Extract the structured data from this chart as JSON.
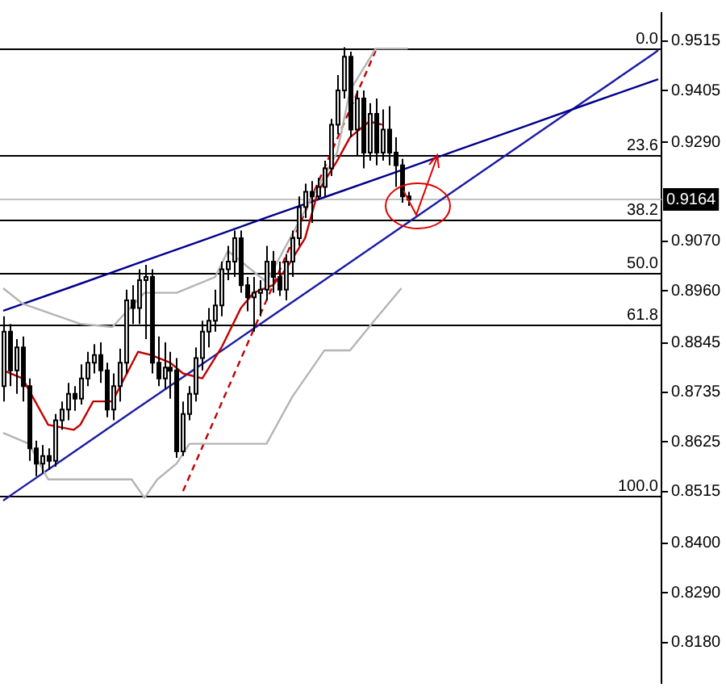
{
  "chart_data": {
    "type": "candlestick",
    "categories": [
      null,
      null,
      null,
      null,
      null,
      null,
      null,
      null,
      null,
      null,
      null,
      null,
      null,
      null,
      null,
      null,
      null,
      null,
      null,
      null,
      null,
      null,
      null,
      null,
      null,
      null,
      null,
      null,
      null,
      null,
      null,
      null,
      null,
      null,
      null,
      null,
      null,
      null,
      null,
      null,
      null,
      null,
      null,
      null,
      null,
      null,
      null,
      null,
      null,
      null,
      null,
      null,
      null,
      null,
      null,
      null,
      null,
      null,
      null,
      null,
      null,
      null,
      null,
      null,
      null,
      null,
      null,
      null,
      null,
      null,
      null,
      null,
      null,
      null,
      null,
      null,
      null,
      null,
      null,
      null,
      null,
      null,
      null,
      null,
      null,
      null,
      null,
      null,
      null,
      null,
      null,
      null,
      null,
      null,
      null,
      null,
      null,
      null,
      null,
      null,
      null,
      null,
      null
    ],
    "ohlc": [
      [
        0.8749,
        0.8904,
        0.8715,
        0.887
      ],
      [
        0.887,
        0.8887,
        0.8749,
        0.8784
      ],
      [
        0.8784,
        0.8853,
        0.8732,
        0.8835
      ],
      [
        0.8835,
        0.8859,
        0.8715,
        0.8749
      ],
      [
        0.8749,
        0.8766,
        0.8583,
        0.8611
      ],
      [
        0.8611,
        0.8628,
        0.8549,
        0.8577
      ],
      [
        0.8577,
        0.8618,
        0.8556,
        0.8594
      ],
      [
        0.8594,
        0.8611,
        0.8563,
        0.8583
      ],
      [
        0.8583,
        0.8687,
        0.857,
        0.8673
      ],
      [
        0.8673,
        0.8715,
        0.8652,
        0.8697
      ],
      [
        0.8697,
        0.8756,
        0.8673,
        0.8732
      ],
      [
        0.8732,
        0.8749,
        0.8694,
        0.8721
      ],
      [
        0.8721,
        0.8797,
        0.8708,
        0.8766
      ],
      [
        0.8766,
        0.8825,
        0.8749,
        0.8801
      ],
      [
        0.8801,
        0.8842,
        0.8777,
        0.8818
      ],
      [
        0.8818,
        0.8846,
        0.8756,
        0.8784
      ],
      [
        0.8784,
        0.8801,
        0.868,
        0.8697
      ],
      [
        0.8697,
        0.8777,
        0.8673,
        0.8749
      ],
      [
        0.8749,
        0.8832,
        0.8715,
        0.8801
      ],
      [
        0.8801,
        0.8963,
        0.8777,
        0.8939
      ],
      [
        0.8939,
        0.8973,
        0.8887,
        0.8922
      ],
      [
        0.8922,
        0.9008,
        0.8887,
        0.8984
      ],
      [
        0.8984,
        0.9018,
        0.8853,
        0.8991
      ],
      [
        0.8991,
        0.9008,
        0.8777,
        0.8801
      ],
      [
        0.8801,
        0.8859,
        0.8749,
        0.8766
      ],
      [
        0.8766,
        0.8846,
        0.8742,
        0.879
      ],
      [
        0.879,
        0.8825,
        0.8721,
        0.8784
      ],
      [
        0.8784,
        0.8811,
        0.859,
        0.8604
      ],
      [
        0.8604,
        0.8715,
        0.8594,
        0.8687
      ],
      [
        0.8687,
        0.8749,
        0.8673,
        0.8732
      ],
      [
        0.8732,
        0.8835,
        0.8715,
        0.8811
      ],
      [
        0.8811,
        0.8894,
        0.8784,
        0.887
      ],
      [
        0.887,
        0.8922,
        0.8835,
        0.8894
      ],
      [
        0.8894,
        0.8963,
        0.887,
        0.8928
      ],
      [
        0.8928,
        0.9025,
        0.8904,
        0.9008
      ],
      [
        0.9008,
        0.906,
        0.8984,
        0.9025
      ],
      [
        0.9025,
        0.9094,
        0.8991,
        0.9077
      ],
      [
        0.9077,
        0.9094,
        0.8956,
        0.8973
      ],
      [
        0.8973,
        0.8991,
        0.8915,
        0.8946
      ],
      [
        0.8946,
        0.8991,
        0.887,
        0.8956
      ],
      [
        0.8956,
        0.8984,
        0.8904,
        0.8963
      ],
      [
        0.8963,
        0.906,
        0.8939,
        0.9025
      ],
      [
        0.9025,
        0.9049,
        0.8956,
        0.8991
      ],
      [
        0.8991,
        0.9025,
        0.8949,
        0.8963
      ],
      [
        0.8963,
        0.9042,
        0.8939,
        0.9025
      ],
      [
        0.9025,
        0.9094,
        0.8991,
        0.9077
      ],
      [
        0.9077,
        0.917,
        0.906,
        0.9146
      ],
      [
        0.9146,
        0.9198,
        0.9122,
        0.918
      ],
      [
        0.918,
        0.9204,
        0.9111,
        0.917
      ],
      [
        0.917,
        0.9211,
        0.9163,
        0.9191
      ],
      [
        0.9191,
        0.9249,
        0.917,
        0.9232
      ],
      [
        0.9232,
        0.9342,
        0.9215,
        0.9329
      ],
      [
        0.9329,
        0.9439,
        0.9308,
        0.9405
      ],
      [
        0.9405,
        0.9501,
        0.9387,
        0.948
      ],
      [
        0.948,
        0.9491,
        0.9301,
        0.9318
      ],
      [
        0.9318,
        0.9405,
        0.926,
        0.9387
      ],
      [
        0.9387,
        0.9405,
        0.9232,
        0.9267
      ],
      [
        0.9267,
        0.9377,
        0.9249,
        0.9353
      ],
      [
        0.9353,
        0.9387,
        0.9239,
        0.9267
      ],
      [
        0.9267,
        0.9363,
        0.9249,
        0.9318
      ],
      [
        0.9318,
        0.937,
        0.9239,
        0.9267
      ],
      [
        0.9267,
        0.9301,
        0.9191,
        0.9239
      ],
      [
        0.9239,
        0.9253,
        0.9156,
        0.917
      ],
      [
        0.917,
        0.918,
        0.9149,
        0.9163
      ],
      null,
      null,
      null,
      null,
      null,
      null,
      null,
      null,
      null,
      null,
      null,
      null,
      null,
      null,
      null,
      null,
      null,
      null,
      null,
      null,
      null,
      null,
      null,
      null,
      null,
      null,
      null,
      null,
      null,
      null,
      null,
      null,
      null,
      null,
      null,
      null,
      null,
      null,
      null
    ],
    "series": [
      {
        "type": "line",
        "color": "#b4b4b4",
        "values": [
          0.8966,
          null,
          null,
          0.8932,
          null,
          null,
          null,
          null,
          null,
          null,
          null,
          null,
          0.8887,
          null,
          null,
          null,
          null,
          0.888,
          null,
          0.8911,
          null,
          null,
          0.8956,
          null,
          null,
          null,
          null,
          0.8956,
          null,
          null,
          null,
          null,
          null,
          0.8991,
          null,
          0.9049,
          null,
          null,
          null,
          null,
          null,
          0.898,
          null,
          null,
          null,
          null,
          null,
          0.9139,
          null,
          null,
          null,
          null,
          0.9267,
          null,
          0.9405,
          null,
          null,
          null,
          0.9498,
          null,
          null,
          null,
          null,
          0.9498,
          null,
          null,
          null,
          null,
          null,
          null,
          null,
          null,
          null,
          null,
          null,
          null,
          null,
          null,
          null,
          null,
          null,
          null,
          null,
          null,
          null,
          null,
          null,
          null,
          null,
          null,
          null,
          null,
          null,
          null,
          null,
          null,
          null,
          null,
          null,
          null,
          null,
          null,
          null
        ]
      },
      {
        "type": "line",
        "color": "#b4b4b4",
        "values": [
          0.8645,
          null,
          null,
          null,
          0.8621,
          null,
          null,
          0.8542,
          null,
          null,
          null,
          null,
          null,
          null,
          null,
          null,
          null,
          null,
          null,
          null,
          0.8542,
          null,
          0.8501,
          null,
          0.8542,
          null,
          null,
          0.8577,
          null,
          0.8621,
          null,
          null,
          null,
          null,
          null,
          null,
          null,
          null,
          null,
          null,
          null,
          0.8621,
          null,
          null,
          null,
          0.8725,
          null,
          null,
          null,
          null,
          0.8828,
          null,
          null,
          null,
          0.8828,
          null,
          null,
          null,
          0.8898,
          null,
          null,
          null,
          0.8966,
          null,
          null,
          null,
          null,
          null,
          null,
          null,
          null,
          null,
          null,
          null,
          null,
          null,
          null,
          null,
          null,
          null,
          null,
          null,
          null,
          null,
          null,
          null,
          null,
          null,
          null,
          null,
          null,
          null,
          null,
          null,
          null,
          null,
          null,
          null,
          null,
          null,
          null,
          null,
          null
        ]
      },
      {
        "type": "line",
        "color": "#c00000",
        "values": [
          0.8784,
          null,
          null,
          0.8766,
          null,
          null,
          null,
          0.8663,
          null,
          null,
          null,
          0.8652,
          0.8663,
          null,
          0.8715,
          null,
          null,
          0.8715,
          null,
          null,
          null,
          0.8825,
          null,
          0.8818,
          null,
          null,
          0.8801,
          null,
          0.8777,
          null,
          null,
          0.8766,
          null,
          null,
          0.8835,
          null,
          null,
          0.8922,
          null,
          0.8956,
          null,
          null,
          0.8973,
          null,
          0.9008,
          null,
          null,
          0.9077,
          null,
          0.918,
          null,
          null,
          0.9249,
          null,
          0.9301,
          null,
          null,
          0.9336,
          null,
          0.9329,
          null,
          null,
          null,
          null,
          null,
          null,
          null,
          null,
          null,
          null,
          null,
          null,
          null,
          null,
          null,
          null,
          null,
          null,
          null,
          null,
          null,
          null,
          null,
          null,
          null,
          null,
          null,
          null,
          null,
          null,
          null,
          null,
          null,
          null,
          null,
          null,
          null,
          null,
          null,
          null,
          null,
          null,
          null
        ]
      },
      {
        "type": "line",
        "color": "#c00000",
        "line_style": "dashed",
        "values": [
          null,
          null,
          null,
          null,
          null,
          null,
          null,
          null,
          null,
          null,
          null,
          null,
          null,
          null,
          null,
          null,
          null,
          null,
          null,
          null,
          null,
          null,
          null,
          null,
          null,
          null,
          null,
          null,
          0.8516,
          null,
          null,
          null,
          null,
          null,
          null,
          null,
          null,
          null,
          null,
          null,
          null,
          null,
          null,
          null,
          null,
          null,
          null,
          null,
          null,
          null,
          null,
          null,
          null,
          null,
          null,
          null,
          null,
          null,
          0.9493,
          null,
          null,
          null,
          null,
          null,
          null,
          null,
          null,
          null,
          null,
          null,
          null,
          null,
          null,
          null,
          null,
          null,
          null,
          null,
          null,
          null,
          null,
          null,
          null,
          null,
          null,
          null,
          null,
          null,
          null,
          null,
          null,
          null,
          null,
          null,
          null,
          null,
          null,
          null,
          null,
          null,
          null,
          null,
          null
        ]
      },
      {
        "type": "line",
        "color": "#00008b",
        "values": [
          0.8916,
          0.8921,
          null,
          null,
          null,
          null,
          null,
          null,
          null,
          null,
          null,
          0.8971,
          null,
          null,
          null,
          null,
          null,
          null,
          null,
          null,
          null,
          0.9022,
          null,
          null,
          null,
          null,
          null,
          null,
          null,
          null,
          null,
          0.9072,
          null,
          null,
          null,
          null,
          null,
          null,
          null,
          null,
          null,
          0.9123,
          null,
          null,
          null,
          null,
          null,
          null,
          null,
          null,
          null,
          0.9173,
          null,
          null,
          null,
          null,
          null,
          null,
          null,
          null,
          null,
          0.9223,
          null,
          null,
          null,
          null,
          null,
          null,
          null,
          null,
          null,
          0.9274,
          null,
          null,
          null,
          null,
          null,
          null,
          null,
          null,
          null,
          0.9324,
          null,
          null,
          null,
          null,
          null,
          null,
          null,
          null,
          null,
          0.9375,
          null,
          null,
          null,
          null,
          null,
          null,
          null,
          null,
          null,
          0.9425,
          0.943
        ]
      },
      {
        "type": "line",
        "color": "#1a1aa6",
        "values": [
          0.8495,
          0.8505,
          null,
          null,
          null,
          null,
          null,
          null,
          null,
          null,
          null,
          0.8603,
          null,
          null,
          null,
          null,
          null,
          null,
          null,
          null,
          null,
          0.8701,
          null,
          null,
          null,
          null,
          null,
          null,
          null,
          null,
          null,
          0.8798,
          null,
          null,
          null,
          null,
          null,
          null,
          null,
          null,
          null,
          0.8896,
          null,
          null,
          null,
          null,
          null,
          null,
          null,
          null,
          null,
          0.8994,
          null,
          null,
          null,
          null,
          null,
          null,
          null,
          null,
          null,
          0.9092,
          null,
          null,
          null,
          null,
          null,
          null,
          null,
          null,
          null,
          0.919,
          null,
          null,
          null,
          null,
          null,
          null,
          null,
          null,
          null,
          0.9288,
          null,
          null,
          null,
          null,
          null,
          null,
          null,
          null,
          null,
          0.9386,
          null,
          null,
          null,
          null,
          null,
          null,
          null,
          null,
          null,
          0.9484,
          0.9494
        ]
      }
    ],
    "ylim": [
      0.809,
      0.9577
    ],
    "yticks": [
      0.9515,
      0.9405,
      {
        "value": 0.929,
        "label": "0.9290"
      },
      {
        "value": 0.907,
        "label": "0.9070"
      },
      {
        "value": 0.896,
        "label": "0.8960"
      },
      0.8845,
      0.8735,
      0.8625,
      0.8515,
      {
        "value": 0.84,
        "label": "0.8400"
      },
      {
        "value": 0.829,
        "label": "0.8290"
      },
      {
        "value": 0.818,
        "label": "0.8180"
      }
    ],
    "ref_lines": [
      {
        "axis": "y",
        "value": 0.9498,
        "color": "#000000"
      },
      {
        "axis": "y",
        "value": 0.9263,
        "color": "#000000"
      },
      {
        "axis": "y",
        "value": 0.9118,
        "color": "#000000"
      },
      {
        "axis": "y",
        "value": 0.9001,
        "color": "#000000"
      },
      {
        "axis": "y",
        "value": 0.8884,
        "color": "#000000"
      },
      {
        "axis": "y",
        "value": 0.8504,
        "color": "#000000"
      },
      {
        "axis": "y",
        "value": 0.9164,
        "label": "0.9164",
        "color": "#c0c0c0"
      }
    ],
    "annotations": [
      {
        "text": "0.0",
        "y": 0.9498
      },
      {
        "text": "23.6",
        "y": 0.9263
      },
      {
        "text": "38.2",
        "y": 0.9118
      },
      {
        "text": "50.0",
        "y": 0.9001
      },
      {
        "text": "61.8",
        "y": 0.8884
      },
      {
        "text": "100.0",
        "y": 0.8504
      }
    ],
    "tick_labels": "y",
    "grid": false,
    "legend": false,
    "marker": "none"
  }
}
